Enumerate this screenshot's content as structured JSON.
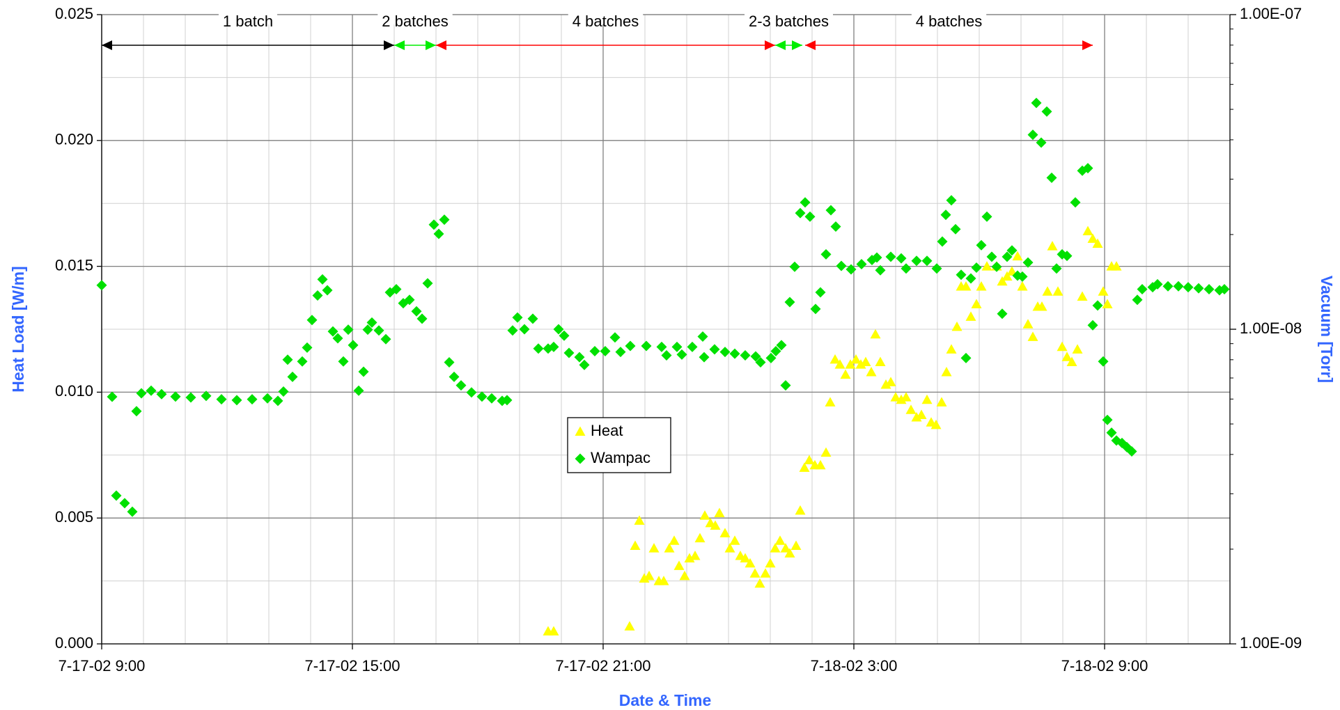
{
  "chart_data": {
    "type": "scatter",
    "xlabel": "Date & Time",
    "ylabel": "Heat Load [W/m]",
    "y2label": "Vacuum [Torr]",
    "xlim": [
      "7-17-02 9:00",
      "7-18-02 12:00"
    ],
    "xticks": [
      "7-17-02 9:00",
      "7-17-02 15:00",
      "7-17-02 21:00",
      "7-18-02 3:00",
      "7-18-02 9:00"
    ],
    "ylim": [
      0,
      0.025
    ],
    "yticks": [
      {
        "value": 0,
        "label": "0.000"
      },
      {
        "value": 0.005,
        "label": "0.005"
      },
      {
        "value": 0.01,
        "label": "0.010"
      },
      {
        "value": 0.015,
        "label": "0.015"
      },
      {
        "value": 0.02,
        "label": "0.020"
      },
      {
        "value": 0.025,
        "label": "0.025"
      }
    ],
    "y2lim": [
      1e-09,
      1e-07
    ],
    "y2log": true,
    "y2ticks": [
      {
        "value": 1e-09,
        "label": "1.00E-09"
      },
      {
        "value": 1e-08,
        "label": "1.00E-08"
      },
      {
        "value": 1e-07,
        "label": "1.00E-07"
      }
    ],
    "grid": true,
    "minor_grid": {
      "x_hours": 1,
      "y": 0.0025
    },
    "annotations": [
      {
        "text": "1 batch",
        "start": "7-17-02 9:00",
        "end": "7-17-02 16:00",
        "color": "#000000"
      },
      {
        "text": "2 batches",
        "start": "7-17-02 16:00",
        "end": "7-17-02 17:00",
        "color": "#00ee00"
      },
      {
        "text": "4 batches",
        "start": "7-17-02 17:00",
        "end": "7-18-02 1:07",
        "color": "#ff0000"
      },
      {
        "text": "2-3 batches",
        "start": "7-18-02 1:07",
        "end": "7-18-02 1:46",
        "color": "#00ee00"
      },
      {
        "text": "4 batches",
        "start": "7-18-02 1:50",
        "end": "7-18-02 8:43",
        "color": "#ff0000"
      }
    ],
    "series": [
      {
        "name": "Heat",
        "color": "#ffff00",
        "marker": "triangle",
        "x": [
          "7-17-02 19:41",
          "7-17-02 19:49",
          "7-17-02 21:38",
          "7-17-02 21:46",
          "7-17-02 21:52",
          "7-17-02 21:59",
          "7-17-02 22:06",
          "7-17-02 22:13",
          "7-17-02 22:20",
          "7-17-02 22:27",
          "7-17-02 22:35",
          "7-17-02 22:42",
          "7-17-02 22:49",
          "7-17-02 22:57",
          "7-17-02 23:04",
          "7-17-02 23:12",
          "7-17-02 23:19",
          "7-17-02 23:26",
          "7-17-02 23:34",
          "7-17-02 23:41",
          "7-17-02 23:47",
          "7-17-02 23:55",
          "7-18-02 0:02",
          "7-18-02 0:09",
          "7-18-02 0:17",
          "7-18-02 0:24",
          "7-18-02 0:31",
          "7-18-02 0:38",
          "7-18-02 0:45",
          "7-18-02 0:53",
          "7-18-02 1:00",
          "7-18-02 1:07",
          "7-18-02 1:14",
          "7-18-02 1:22",
          "7-18-02 1:28",
          "7-18-02 1:37",
          "7-18-02 1:43",
          "7-18-02 1:49",
          "7-18-02 1:56",
          "7-18-02 2:04",
          "7-18-02 2:12",
          "7-18-02 2:20",
          "7-18-02 2:26",
          "7-18-02 2:33",
          "7-18-02 2:40",
          "7-18-02 2:48",
          "7-18-02 2:55",
          "7-18-02 3:03",
          "7-18-02 3:10",
          "7-18-02 3:17",
          "7-18-02 3:25",
          "7-18-02 3:31",
          "7-18-02 3:38",
          "7-18-02 3:46",
          "7-18-02 3:53",
          "7-18-02 4:00",
          "7-18-02 4:08",
          "7-18-02 4:15",
          "7-18-02 4:22",
          "7-18-02 4:30",
          "7-18-02 4:37",
          "7-18-02 4:45",
          "7-18-02 4:51",
          "7-18-02 4:58",
          "7-18-02 5:06",
          "7-18-02 5:13",
          "7-18-02 5:20",
          "7-18-02 5:28",
          "7-18-02 5:34",
          "7-18-02 5:41",
          "7-18-02 5:48",
          "7-18-02 5:56",
          "7-18-02 6:03",
          "7-18-02 6:11",
          "7-18-02 6:25",
          "7-18-02 6:33",
          "7-18-02 6:40",
          "7-18-02 6:47",
          "7-18-02 6:55",
          "7-18-02 7:02",
          "7-18-02 7:10",
          "7-18-02 7:17",
          "7-18-02 7:24",
          "7-18-02 7:30",
          "7-18-02 7:38",
          "7-18-02 7:45",
          "7-18-02 7:53",
          "7-18-02 7:59",
          "7-18-02 8:06",
          "7-18-02 8:13",
          "7-18-02 8:21",
          "7-18-02 8:28",
          "7-18-02 8:36",
          "7-18-02 8:43",
          "7-18-02 8:50",
          "7-18-02 8:58",
          "7-18-02 9:04",
          "7-18-02 9:10",
          "7-18-02 9:17"
        ],
        "values": [
          0.0005,
          0.0005,
          0.0007,
          0.0039,
          0.0049,
          0.0026,
          0.0027,
          0.0038,
          0.0025,
          0.0025,
          0.0038,
          0.0041,
          0.0031,
          0.0027,
          0.0034,
          0.0035,
          0.0042,
          0.0051,
          0.0048,
          0.0047,
          0.0052,
          0.0044,
          0.0038,
          0.0041,
          0.0035,
          0.0034,
          0.0032,
          0.0028,
          0.0024,
          0.0028,
          0.0032,
          0.0038,
          0.0041,
          0.0038,
          0.0036,
          0.0039,
          0.0053,
          0.007,
          0.0073,
          0.0071,
          0.0071,
          0.0076,
          0.0096,
          0.0113,
          0.0111,
          0.0107,
          0.0111,
          0.0113,
          0.0111,
          0.0112,
          0.0108,
          0.0123,
          0.0112,
          0.0103,
          0.0104,
          0.0098,
          0.0097,
          0.0098,
          0.0093,
          0.009,
          0.0091,
          0.0097,
          0.0088,
          0.0087,
          0.0096,
          0.0108,
          0.0117,
          0.0126,
          0.0142,
          0.0142,
          0.013,
          0.0135,
          0.0142,
          0.015,
          0.015,
          0.0144,
          0.0146,
          0.0148,
          0.0154,
          0.0142,
          0.0127,
          0.0122,
          0.0134,
          0.0134,
          0.014,
          0.0158,
          0.014,
          0.0118,
          0.0114,
          0.0112,
          0.0117,
          0.0138,
          0.0164,
          0.0161,
          0.0159,
          0.014,
          0.0135,
          0.015,
          0.015
        ]
      },
      {
        "name": "Wampac",
        "color": "#00e000",
        "marker": "diamond",
        "axis": "y2",
        "x": [
          "7-17-02 9:00",
          "7-17-02 9:15",
          "7-17-02 9:21",
          "7-17-02 9:33",
          "7-17-02 9:44",
          "7-17-02 9:50",
          "7-17-02 9:57",
          "7-17-02 10:11",
          "7-17-02 10:26",
          "7-17-02 10:46",
          "7-17-02 11:08",
          "7-17-02 11:30",
          "7-17-02 11:52",
          "7-17-02 12:14",
          "7-17-02 12:36",
          "7-17-02 12:58",
          "7-17-02 13:13",
          "7-17-02 13:21",
          "7-17-02 13:27",
          "7-17-02 13:34",
          "7-17-02 13:48",
          "7-17-02 13:55",
          "7-17-02 14:02",
          "7-17-02 14:10",
          "7-17-02 14:17",
          "7-17-02 14:24",
          "7-17-02 14:32",
          "7-17-02 14:39",
          "7-17-02 14:47",
          "7-17-02 14:54",
          "7-17-02 15:01",
          "7-17-02 15:09",
          "7-17-02 15:16",
          "7-17-02 15:22",
          "7-17-02 15:28",
          "7-17-02 15:38",
          "7-17-02 15:48",
          "7-17-02 15:54",
          "7-17-02 16:03",
          "7-17-02 16:13",
          "7-17-02 16:22",
          "7-17-02 16:32",
          "7-17-02 16:40",
          "7-17-02 16:48",
          "7-17-02 16:57",
          "7-17-02 17:04",
          "7-17-02 17:12",
          "7-17-02 17:19",
          "7-17-02 17:26",
          "7-17-02 17:36",
          "7-17-02 17:51",
          "7-17-02 18:06",
          "7-17-02 18:20",
          "7-17-02 18:35",
          "7-17-02 18:42",
          "7-17-02 18:50",
          "7-17-02 18:57",
          "7-17-02 19:07",
          "7-17-02 19:19",
          "7-17-02 19:27",
          "7-17-02 19:41",
          "7-17-02 19:49",
          "7-17-02 19:56",
          "7-17-02 20:04",
          "7-17-02 20:11",
          "7-17-02 20:26",
          "7-17-02 20:33",
          "7-17-02 20:48",
          "7-17-02 21:03",
          "7-17-02 21:17",
          "7-17-02 21:25",
          "7-17-02 21:39",
          "7-17-02 22:02",
          "7-17-02 22:24",
          "7-17-02 22:31",
          "7-17-02 22:46",
          "7-17-02 22:53",
          "7-17-02 23:08",
          "7-17-02 23:23",
          "7-17-02 23:25",
          "7-17-02 23:40",
          "7-17-02 23:55",
          "7-18-02 0:09",
          "7-18-02 0:24",
          "7-18-02 0:39",
          "7-18-02 0:46",
          "7-18-02 1:01",
          "7-18-02 1:08",
          "7-18-02 1:16",
          "7-18-02 1:22",
          "7-18-02 1:28",
          "7-18-02 1:35",
          "7-18-02 1:43",
          "7-18-02 1:50",
          "7-18-02 1:57",
          "7-18-02 2:05",
          "7-18-02 2:12",
          "7-18-02 2:20",
          "7-18-02 2:27",
          "7-18-02 2:34",
          "7-18-02 2:42",
          "7-18-02 2:56",
          "7-18-02 3:11",
          "7-18-02 3:26",
          "7-18-02 3:33",
          "7-18-02 3:38",
          "7-18-02 3:53",
          "7-18-02 4:08",
          "7-18-02 4:15",
          "7-18-02 4:30",
          "7-18-02 4:45",
          "7-18-02 4:59",
          "7-18-02 5:07",
          "7-18-02 5:12",
          "7-18-02 5:20",
          "7-18-02 5:26",
          "7-18-02 5:34",
          "7-18-02 5:41",
          "7-18-02 5:48",
          "7-18-02 5:56",
          "7-18-02 6:03",
          "7-18-02 6:11",
          "7-18-02 6:18",
          "7-18-02 6:25",
          "7-18-02 6:33",
          "7-18-02 6:40",
          "7-18-02 6:47",
          "7-18-02 6:55",
          "7-18-02 7:02",
          "7-18-02 7:10",
          "7-18-02 7:17",
          "7-18-02 7:22",
          "7-18-02 7:29",
          "7-18-02 7:37",
          "7-18-02 7:44",
          "7-18-02 7:51",
          "7-18-02 7:59",
          "7-18-02 8:06",
          "7-18-02 8:18",
          "7-18-02 8:28",
          "7-18-02 8:36",
          "7-18-02 8:43",
          "7-18-02 8:50",
          "7-18-02 8:58",
          "7-18-02 9:04",
          "7-18-02 9:10",
          "7-18-02 9:17",
          "7-18-02 9:25",
          "7-18-02 9:32",
          "7-18-02 9:39",
          "7-18-02 9:47",
          "7-18-02 9:54",
          "7-18-02 10:09",
          "7-18-02 10:16",
          "7-18-02 10:31",
          "7-18-02 10:46",
          "7-18-02 11:00",
          "7-18-02 11:15",
          "7-18-02 11:30",
          "7-18-02 11:45",
          "7-18-02 11:52"
        ],
        "values": [
          1.38e-08,
          6.1e-09,
          2.96e-09,
          2.8e-09,
          2.63e-09,
          5.49e-09,
          6.26e-09,
          6.38e-09,
          6.22e-09,
          6.11e-09,
          6.07e-09,
          6.14e-09,
          5.99e-09,
          5.95e-09,
          5.99e-09,
          6.03e-09,
          5.92e-09,
          6.34e-09,
          8e-09,
          7.06e-09,
          7.9e-09,
          8.74e-09,
          1.07e-08,
          1.28e-08,
          1.44e-08,
          1.33e-08,
          9.84e-09,
          9.36e-09,
          7.9e-09,
          9.97e-09,
          8.9e-09,
          6.38e-09,
          7.33e-09,
          9.97e-09,
          1.05e-08,
          9.91e-09,
          9.3e-09,
          1.31e-08,
          1.34e-08,
          1.21e-08,
          1.24e-08,
          1.14e-08,
          1.08e-08,
          1.4e-08,
          2.15e-08,
          2.01e-08,
          2.23e-08,
          7.85e-09,
          7.06e-09,
          6.63e-09,
          6.3e-09,
          6.11e-09,
          6.03e-09,
          5.92e-09,
          5.95e-09,
          9.91e-09,
          1.09e-08,
          1e-08,
          1.08e-08,
          8.68e-09,
          8.68e-09,
          8.79e-09,
          1e-08,
          9.54e-09,
          8.41e-09,
          8.15e-09,
          7.7e-09,
          8.52e-09,
          8.52e-09,
          9.42e-09,
          8.47e-09,
          8.85e-09,
          8.85e-09,
          8.79e-09,
          8.26e-09,
          8.79e-09,
          8.31e-09,
          8.79e-09,
          9.48e-09,
          8.15e-09,
          8.63e-09,
          8.47e-09,
          8.36e-09,
          8.26e-09,
          8.2e-09,
          7.85e-09,
          8.1e-09,
          8.52e-09,
          8.9e-09,
          6.63e-09,
          1.22e-08,
          1.58e-08,
          2.34e-08,
          2.53e-08,
          2.28e-08,
          1.16e-08,
          1.31e-08,
          1.73e-08,
          2.39e-08,
          2.12e-08,
          1.59e-08,
          1.55e-08,
          1.61e-08,
          1.66e-08,
          1.69e-08,
          1.54e-08,
          1.7e-08,
          1.68e-08,
          1.56e-08,
          1.65e-08,
          1.65e-08,
          1.56e-08,
          1.9e-08,
          2.31e-08,
          2.57e-08,
          2.08e-08,
          1.49e-08,
          8.1e-09,
          1.45e-08,
          1.57e-08,
          1.85e-08,
          2.28e-08,
          1.7e-08,
          1.58e-08,
          1.12e-08,
          1.7e-08,
          1.78e-08,
          1.48e-08,
          1.47e-08,
          1.63e-08,
          4.15e-08,
          5.24e-08,
          3.92e-08,
          4.92e-08,
          3.03e-08,
          1.56e-08,
          1.73e-08,
          1.71e-08,
          2.53e-08,
          3.19e-08,
          3.25e-08,
          1.03e-08,
          1.19e-08,
          7.9e-09,
          5.15e-09,
          4.69e-09,
          4.43e-09,
          4.35e-09,
          4.22e-09,
          4.09e-09,
          1.24e-08,
          1.34e-08,
          1.36e-08,
          1.39e-08,
          1.37e-08,
          1.37e-08,
          1.36e-08,
          1.35e-08,
          1.34e-08,
          1.33e-08,
          1.34e-08
        ]
      }
    ]
  }
}
